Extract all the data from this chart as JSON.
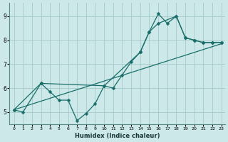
{
  "xlabel": "Humidex (Indice chaleur)",
  "bg_color": "#cce8e8",
  "grid_color": "#aacece",
  "line_color": "#1a6e6a",
  "xlim_min": -0.5,
  "xlim_max": 23.4,
  "ylim_min": 4.5,
  "ylim_max": 9.55,
  "xticks": [
    0,
    1,
    2,
    3,
    4,
    5,
    6,
    7,
    8,
    9,
    10,
    11,
    12,
    13,
    14,
    15,
    16,
    17,
    18,
    19,
    20,
    21,
    22,
    23
  ],
  "yticks": [
    5,
    6,
    7,
    8,
    9
  ],
  "line1_x": [
    0,
    1,
    3,
    4,
    5,
    6,
    7,
    8,
    9,
    10,
    11,
    12,
    13,
    14,
    15,
    16,
    17,
    18,
    19,
    20,
    21,
    22,
    23
  ],
  "line1_y": [
    5.1,
    5.0,
    6.2,
    5.85,
    5.5,
    5.5,
    4.65,
    4.95,
    5.35,
    6.1,
    6.0,
    6.55,
    7.1,
    7.5,
    8.35,
    9.1,
    8.7,
    9.0,
    8.1,
    8.0,
    7.9,
    7.9,
    7.9
  ],
  "line2_x": [
    0,
    3,
    10,
    14,
    15,
    16,
    18,
    19,
    20,
    21,
    22,
    23
  ],
  "line2_y": [
    5.1,
    6.2,
    6.1,
    7.5,
    8.35,
    8.7,
    9.0,
    8.1,
    8.0,
    7.9,
    7.9,
    7.9
  ],
  "line3_x": [
    0,
    23
  ],
  "line3_y": [
    5.1,
    7.85
  ]
}
